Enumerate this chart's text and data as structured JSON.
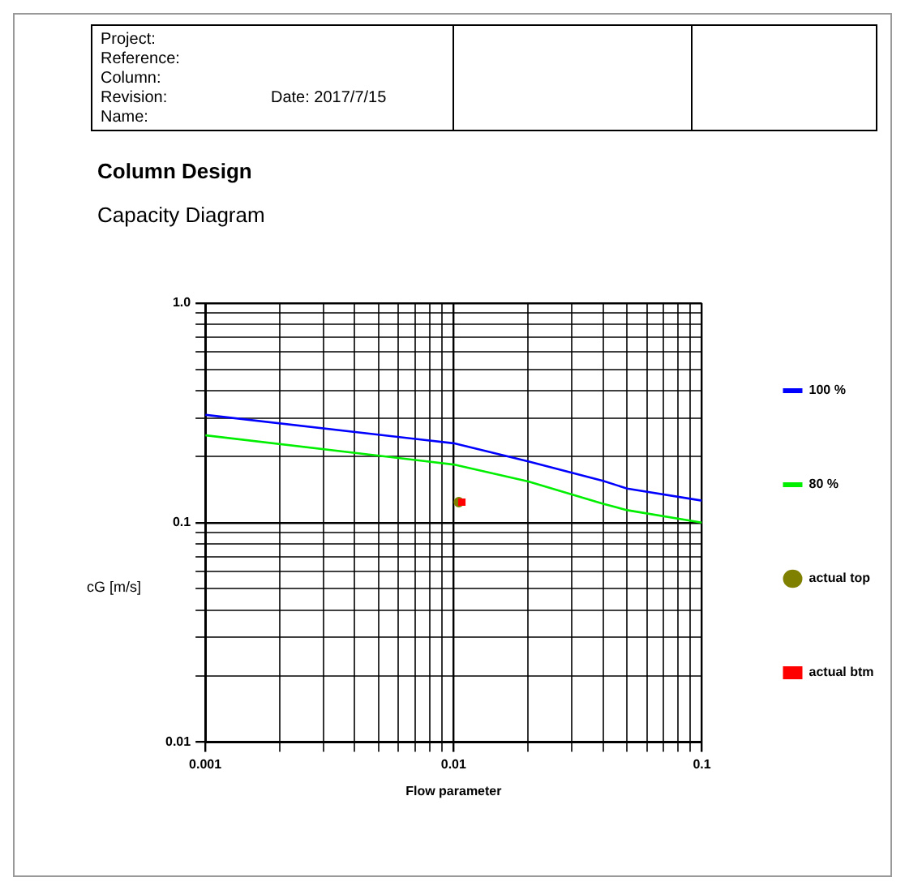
{
  "chart_data": {
    "type": "line",
    "title": "Column Design",
    "subtitle": "Capacity Diagram",
    "xlabel": "Flow parameter",
    "ylabel": "cG [m/s]",
    "annotations": [
      "Project:",
      "Reference:",
      "Column:",
      "Revision:",
      "Name:",
      "Date: 2017/7/15"
    ],
    "log": "xy",
    "grid": true,
    "legend": "right",
    "xlim": [
      0.001,
      0.1
    ],
    "ylim": [
      0.01,
      1
    ],
    "xticks": [
      0.001,
      {
        "value": 0.002,
        "label": null
      },
      {
        "value": 0.003,
        "label": null
      },
      {
        "value": 0.004,
        "label": null
      },
      {
        "value": 0.005,
        "label": null
      },
      {
        "value": 0.006,
        "label": null
      },
      {
        "value": 0.007,
        "label": null
      },
      {
        "value": 0.008,
        "label": null
      },
      {
        "value": 0.009,
        "label": null
      },
      0.01,
      {
        "value": 0.02,
        "label": null
      },
      {
        "value": 0.03,
        "label": null
      },
      {
        "value": 0.04,
        "label": null
      },
      {
        "value": 0.05,
        "label": null
      },
      {
        "value": 0.06,
        "label": null
      },
      {
        "value": 0.07,
        "label": null
      },
      {
        "value": 0.08,
        "label": null
      },
      {
        "value": 0.09,
        "label": null
      },
      0.1
    ],
    "yticks": [
      0.01,
      {
        "value": 0.02,
        "label": null
      },
      {
        "value": 0.03,
        "label": null
      },
      {
        "value": 0.04,
        "label": null
      },
      {
        "value": 0.05,
        "label": null
      },
      {
        "value": 0.06,
        "label": null
      },
      {
        "value": 0.07,
        "label": null
      },
      {
        "value": 0.08,
        "label": null
      },
      {
        "value": 0.09,
        "label": null
      },
      0.1,
      {
        "value": 0.2,
        "label": null
      },
      {
        "value": 0.3,
        "label": null
      },
      {
        "value": 0.4,
        "label": null
      },
      {
        "value": 0.5,
        "label": null
      },
      {
        "value": 0.6,
        "label": null
      },
      {
        "value": 0.7,
        "label": null
      },
      {
        "value": 0.8,
        "label": null
      },
      {
        "value": 0.9,
        "label": null
      },
      {
        "value": 1,
        "label": "1.0"
      }
    ],
    "series": [
      {
        "name": "100 %",
        "type": "line",
        "marker": "none",
        "color": "#0000ff",
        "x": [
          0.001,
          0.01,
          0.02,
          0.04,
          0.05,
          0.1
        ],
        "values": [
          0.31,
          0.23,
          0.19,
          0.155,
          0.143,
          0.126
        ]
      },
      {
        "name": "80 %",
        "type": "line",
        "marker": "none",
        "color": "#00ee00",
        "x": [
          0.001,
          0.01,
          0.02,
          0.04,
          0.05,
          0.1
        ],
        "values": [
          0.25,
          0.184,
          0.154,
          0.122,
          0.114,
          0.1
        ]
      },
      {
        "name": "actual top",
        "type": "scatter",
        "marker": "circle",
        "color": "#808000",
        "x": [
          0.0105
        ],
        "values": [
          0.124
        ]
      },
      {
        "name": "actual btm",
        "type": "scatter",
        "marker": "square",
        "color": "#ff0000",
        "x": [
          0.0108
        ],
        "values": [
          0.124
        ]
      }
    ]
  }
}
